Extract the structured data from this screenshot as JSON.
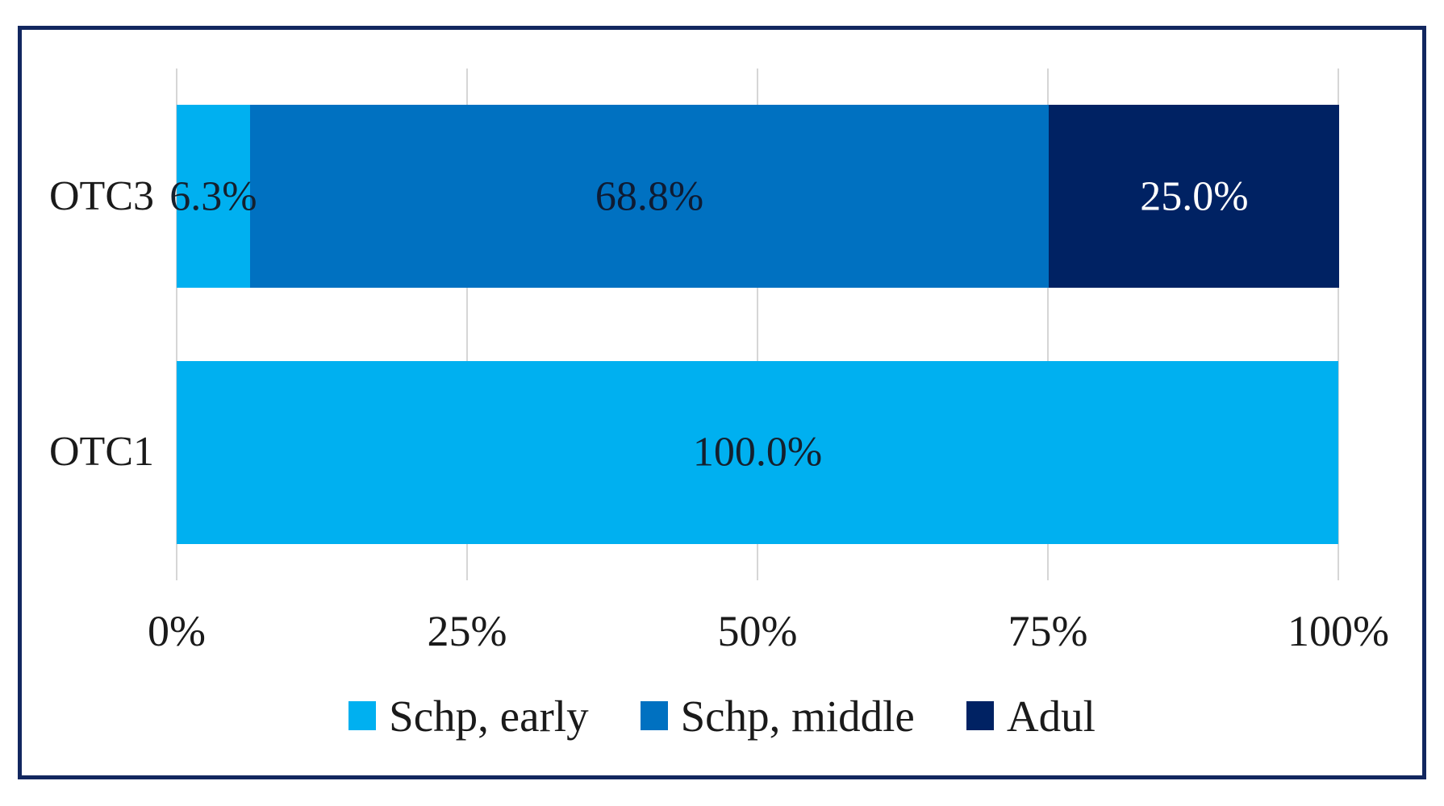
{
  "chart_data": {
    "type": "bar",
    "orientation": "horizontal",
    "stacked": true,
    "title": "",
    "xlabel": "",
    "ylabel": "",
    "xlim": [
      0,
      100
    ],
    "grid": "vertical",
    "categories": [
      "OTC3",
      "OTC1"
    ],
    "series": [
      {
        "name": "Schp, early",
        "color": "#00b0f0",
        "values": [
          6.3,
          100.0
        ]
      },
      {
        "name": "Schp, middle",
        "color": "#0071c1",
        "values": [
          68.8,
          0.0
        ]
      },
      {
        "name": "Adul",
        "color": "#002263",
        "values": [
          25.0,
          0.0
        ]
      }
    ],
    "rows": [
      {
        "category": "OTC3",
        "segments": [
          {
            "series": "Schp, early",
            "value": 6.3,
            "label": "6.3%",
            "color": "#00b0f0",
            "label_color": "#14202e"
          },
          {
            "series": "Schp, middle",
            "value": 68.8,
            "label": "68.8%",
            "color": "#0071c1",
            "label_color": "#0e1b33"
          },
          {
            "series": "Adul",
            "value": 25.0,
            "label": "25.0%",
            "color": "#002263",
            "label_color": "#ffffff"
          }
        ]
      },
      {
        "category": "OTC1",
        "segments": [
          {
            "series": "Schp, early",
            "value": 100.0,
            "label": "100.0%",
            "color": "#00b0f0",
            "label_color": "#14202e"
          }
        ]
      }
    ],
    "x_axis": {
      "ticks": [
        {
          "label": "0%",
          "value": 0
        },
        {
          "label": "25%",
          "value": 25
        },
        {
          "label": "50%",
          "value": 50
        },
        {
          "label": "75%",
          "value": 75
        },
        {
          "label": "100%",
          "value": 100
        }
      ]
    },
    "legend": {
      "position": "bottom",
      "entries": [
        {
          "label": "Schp, early",
          "color": "#00b0f0"
        },
        {
          "label": "Schp, middle",
          "color": "#0071c1"
        },
        {
          "label": "Adul",
          "color": "#002263"
        }
      ]
    },
    "colors": {
      "frame_border": "#12275f",
      "gridline": "#d6d6d6",
      "background": "#ffffff"
    }
  }
}
